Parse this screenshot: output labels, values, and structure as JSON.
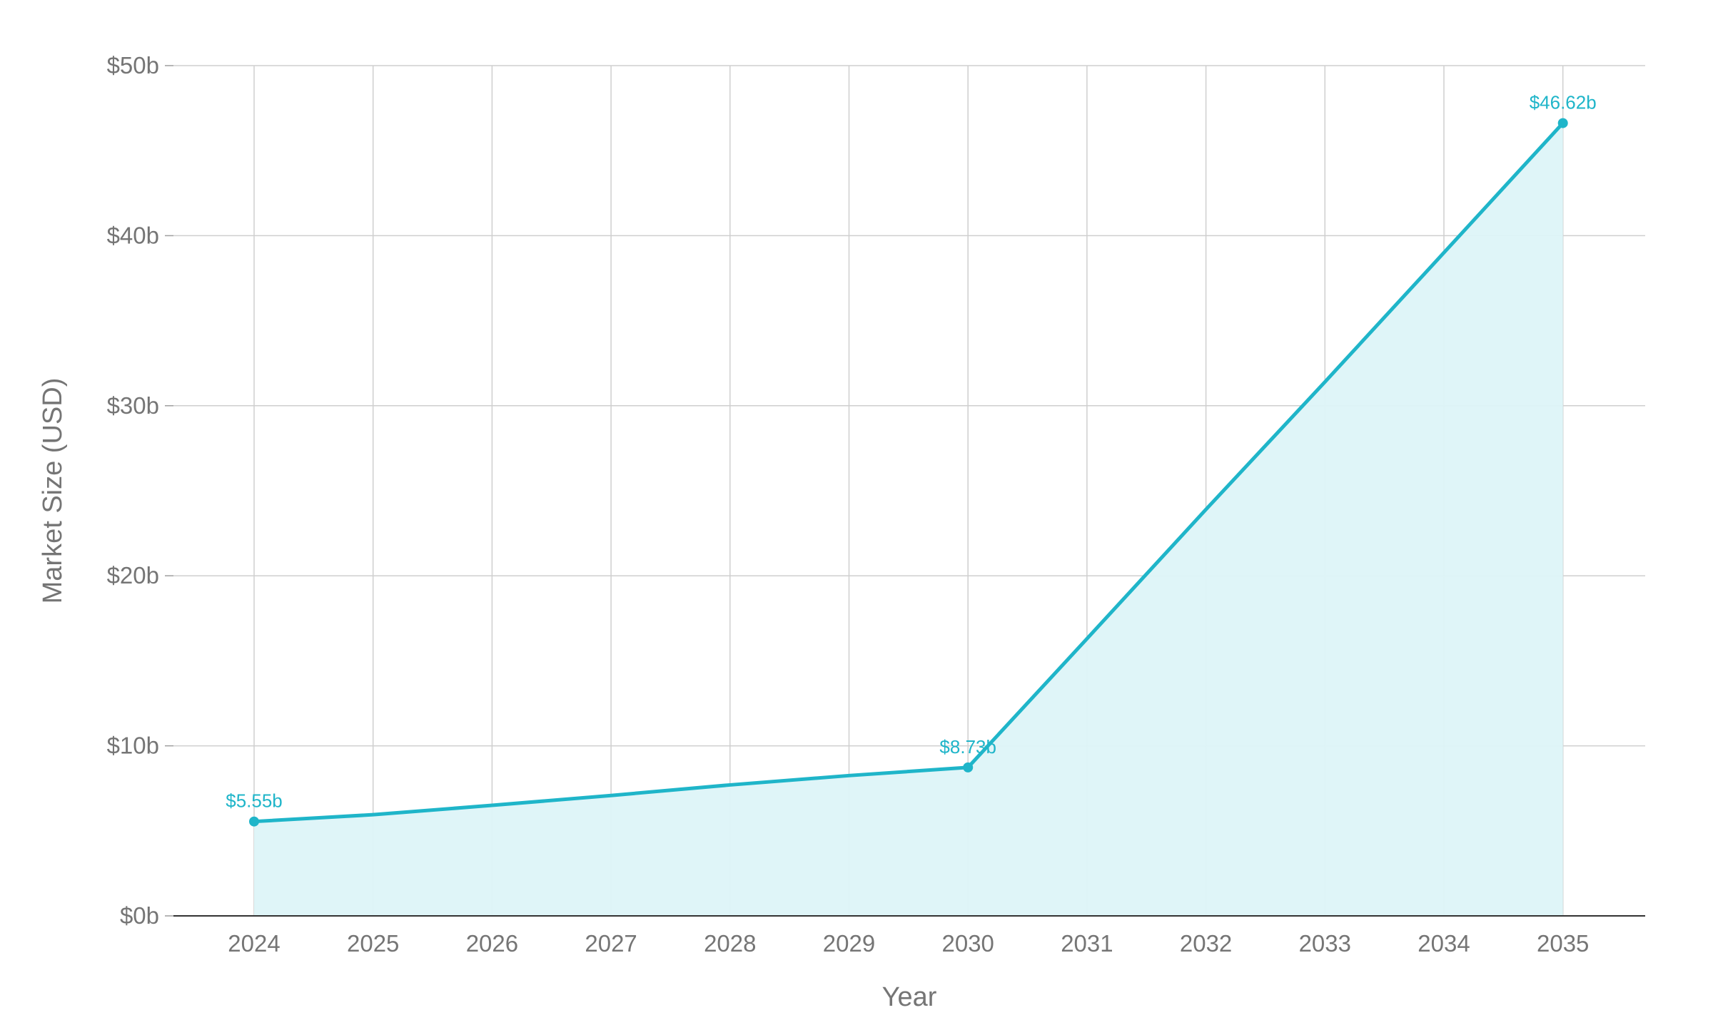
{
  "chart_data": {
    "type": "area",
    "xlabel": "Year",
    "ylabel": "Market Size (USD)",
    "ylim": [
      0,
      50
    ],
    "y_ticks": [
      0,
      10,
      20,
      30,
      40,
      50
    ],
    "y_tick_labels": [
      "$0b",
      "$10b",
      "$20b",
      "$30b",
      "$40b",
      "$50b"
    ],
    "categories": [
      "2024",
      "2025",
      "2026",
      "2027",
      "2028",
      "2029",
      "2030",
      "2031",
      "2032",
      "2033",
      "2034",
      "2035"
    ],
    "series": [
      {
        "values": [
          5.55,
          5.95,
          6.5,
          7.08,
          7.7,
          8.25,
          8.73,
          16.3,
          23.9,
          31.4,
          39.0,
          46.62
        ],
        "color": "#1fb5c9",
        "fill": "#ddf4f8"
      }
    ],
    "annotations": [
      {
        "index": 0,
        "label": "$5.55b"
      },
      {
        "index": 6,
        "label": "$8.73b"
      },
      {
        "index": 11,
        "label": "$46.62b"
      }
    ],
    "grid": true,
    "legend": "none"
  }
}
